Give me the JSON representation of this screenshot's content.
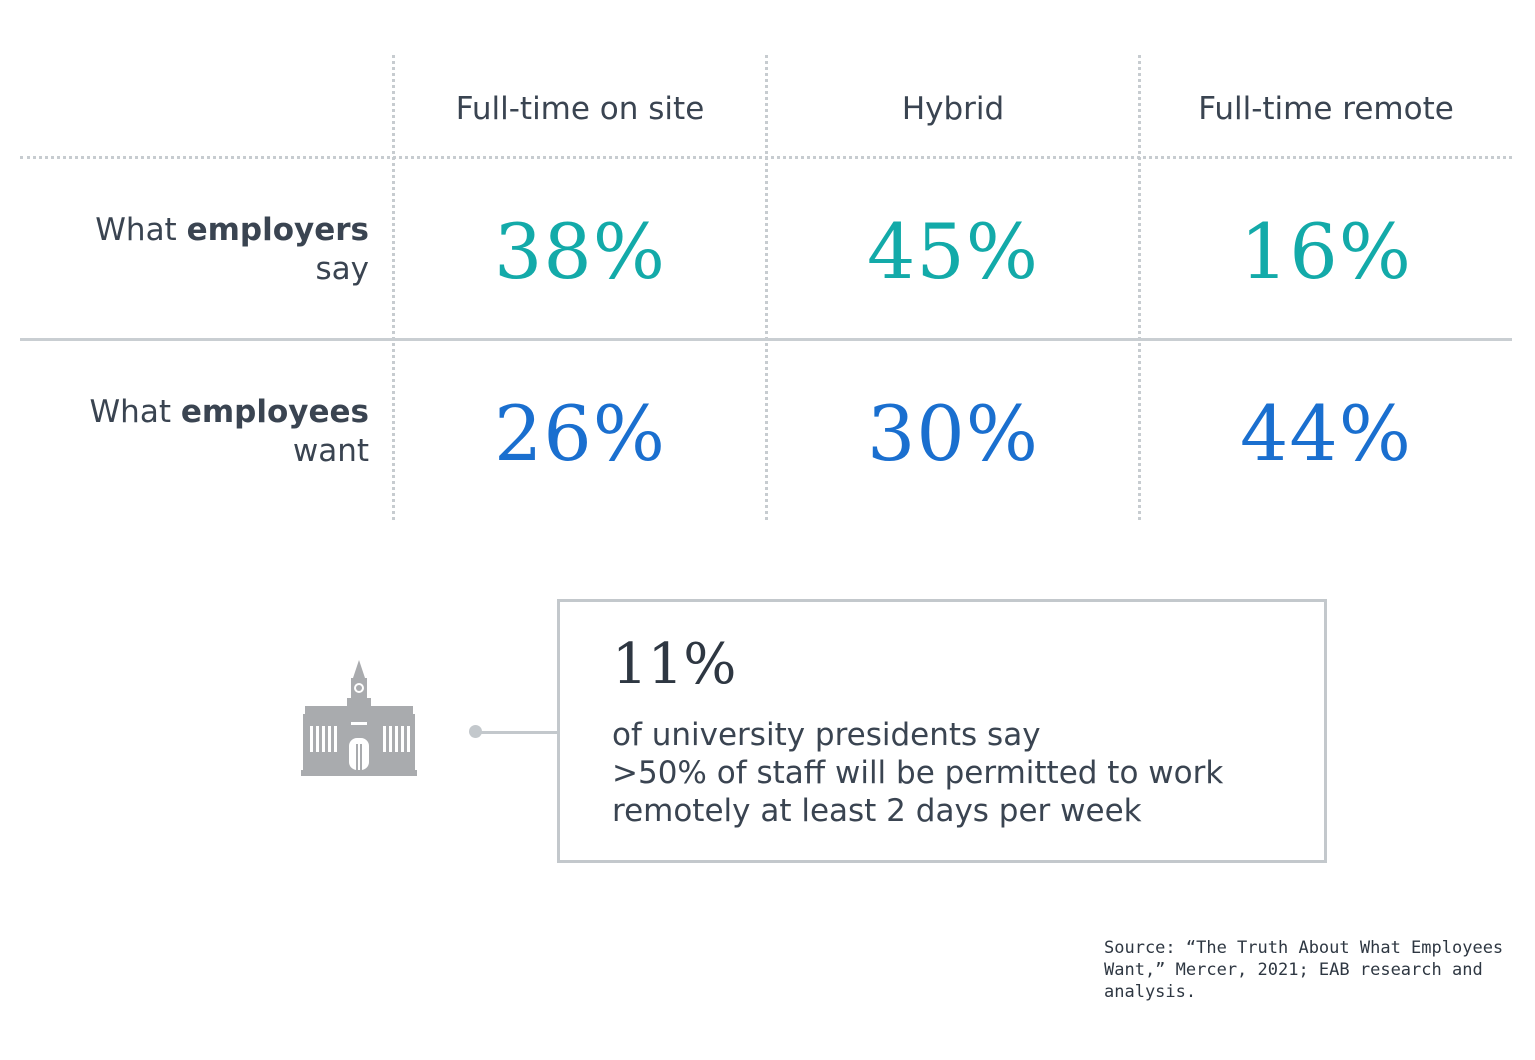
{
  "chart_data": {
    "type": "table",
    "columns": [
      "Full-time on site",
      "Hybrid",
      "Full-time remote"
    ],
    "rows": [
      {
        "label_normal": "What",
        "label_bold": "employers",
        "label_line2": "say",
        "values": [
          "38%",
          "45%",
          "16%"
        ],
        "color": "#13aaa9"
      },
      {
        "label_normal": "What",
        "label_bold": "employees",
        "label_line2": "want",
        "values": [
          "26%",
          "30%",
          "44%"
        ],
        "color": "#1a6fcf"
      }
    ]
  },
  "callout": {
    "stat": "11%",
    "line1": "of university presidents say",
    "line2": ">50% of staff will be permitted to work",
    "line3": "remotely at least 2 days per week",
    "icon": "university-building-icon"
  },
  "source": {
    "line1": "Source: “The Truth About What Employees",
    "line2": "Want,” Mercer, 2021; EAB research and",
    "line3": "analysis."
  },
  "colors": {
    "employers": "#13aaa9",
    "employees": "#1a6fcf",
    "text": "#3a4451",
    "lines": "#c7ccd0"
  }
}
